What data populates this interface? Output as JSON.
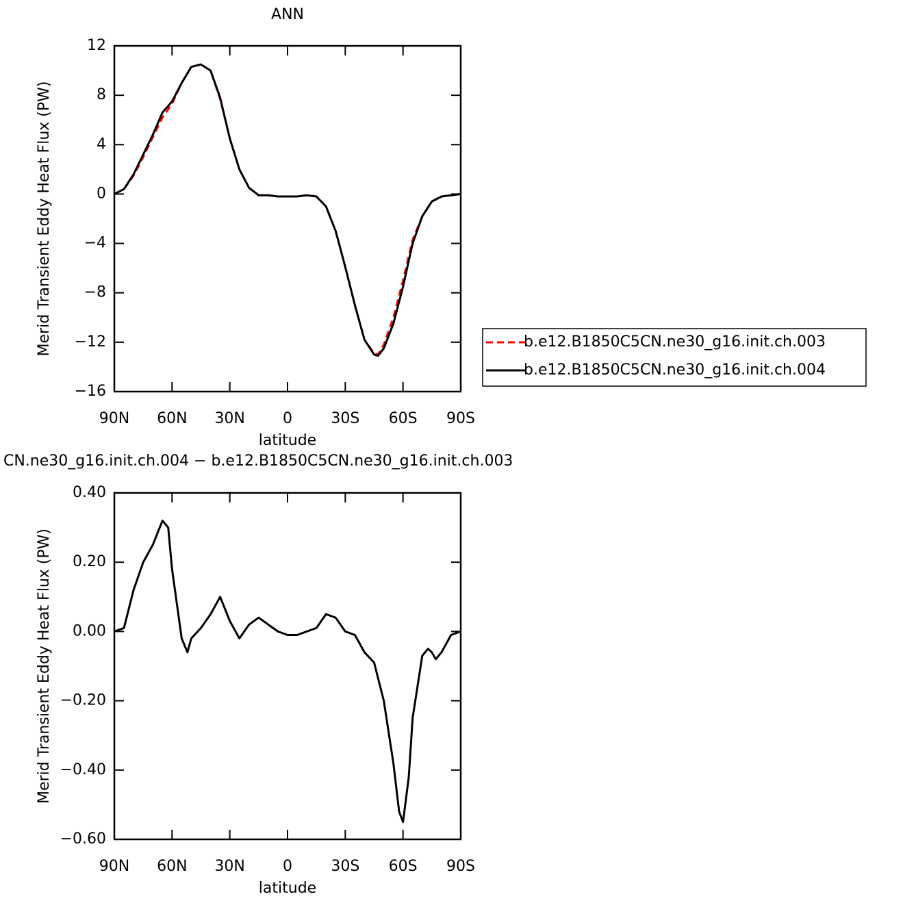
{
  "chart_data": [
    {
      "type": "line",
      "title": "ANN",
      "xlabel": "latitude",
      "ylabel": "Merid Transient Eddy Heat Flux (PW)",
      "x": [
        90,
        85,
        80,
        75,
        70,
        65,
        60,
        55,
        50,
        45,
        40,
        35,
        30,
        25,
        20,
        15,
        10,
        5,
        0,
        -5,
        -10,
        -15,
        -20,
        -25,
        -30,
        -35,
        -40,
        -45,
        -47,
        -50,
        -55,
        -60,
        -65,
        -70,
        -75,
        -80,
        -85,
        -90
      ],
      "series": [
        {
          "name": "b.e12.B1850C5CN.ne30_g16.init.ch.003",
          "color": "#ff0000",
          "dash": true,
          "values": [
            0,
            0.4,
            1.5,
            3.0,
            4.6,
            6.2,
            7.3,
            9.0,
            10.3,
            10.5,
            10.0,
            7.7,
            4.5,
            2.0,
            0.5,
            -0.1,
            -0.1,
            -0.2,
            -0.2,
            -0.2,
            -0.1,
            -0.2,
            -1.0,
            -3.0,
            -5.9,
            -9.0,
            -11.8,
            -12.9,
            -13.0,
            -12.2,
            -10.0,
            -7.0,
            -3.7,
            -1.8,
            -0.6,
            -0.2,
            -0.1,
            0
          ]
        },
        {
          "name": "b.e12.B1850C5CN.ne30_g16.init.ch.004",
          "color": "#000000",
          "dash": false,
          "values": [
            0,
            0.4,
            1.6,
            3.2,
            4.8,
            6.6,
            7.5,
            9.0,
            10.3,
            10.5,
            10.0,
            7.8,
            4.5,
            2.0,
            0.5,
            -0.1,
            -0.1,
            -0.2,
            -0.2,
            -0.2,
            -0.1,
            -0.2,
            -1.0,
            -3.0,
            -5.9,
            -9.0,
            -11.8,
            -13.0,
            -13.1,
            -12.5,
            -10.5,
            -7.5,
            -4.0,
            -1.8,
            -0.6,
            -0.2,
            -0.1,
            0
          ]
        }
      ],
      "xlim": [
        90,
        -90
      ],
      "xticks": [
        {
          "value": 90,
          "label": "90N"
        },
        {
          "value": 60,
          "label": "60N"
        },
        {
          "value": 30,
          "label": "30N"
        },
        0,
        {
          "value": -30,
          "label": "30S"
        },
        {
          "value": -60,
          "label": "60S"
        },
        {
          "value": -90,
          "label": "90S"
        }
      ],
      "ylim": [
        -16,
        12
      ],
      "yticks": [
        {
          "value": -16,
          "label": "−16"
        },
        {
          "value": -12,
          "label": "−12"
        },
        {
          "value": -8,
          "label": "−8"
        },
        {
          "value": -4,
          "label": "−4"
        },
        0,
        4,
        8,
        12
      ],
      "legend": "outside-right"
    },
    {
      "type": "line",
      "title": "CN.ne30_g16.init.ch.004 − b.e12.B1850C5CN.ne30_g16.init.ch.003",
      "xlabel": "latitude",
      "ylabel": "Merid Transient Eddy Heat Flux (PW)",
      "x": [
        90,
        85,
        80,
        75,
        70,
        65,
        62,
        60,
        55,
        52,
        50,
        45,
        40,
        35,
        30,
        25,
        20,
        15,
        10,
        5,
        0,
        -5,
        -10,
        -15,
        -20,
        -25,
        -30,
        -35,
        -40,
        -45,
        -50,
        -55,
        -58,
        -60,
        -63,
        -65,
        -70,
        -73,
        -75,
        -77,
        -80,
        -85,
        -90
      ],
      "series": [
        {
          "color": "#000000",
          "dash": false,
          "values": [
            0.0,
            0.01,
            0.12,
            0.2,
            0.25,
            0.32,
            0.3,
            0.18,
            -0.02,
            -0.06,
            -0.02,
            0.01,
            0.05,
            0.1,
            0.03,
            -0.02,
            0.02,
            0.04,
            0.02,
            0.0,
            -0.01,
            -0.01,
            0.0,
            0.01,
            0.05,
            0.04,
            0.0,
            -0.01,
            -0.06,
            -0.09,
            -0.2,
            -0.38,
            -0.52,
            -0.55,
            -0.42,
            -0.25,
            -0.07,
            -0.05,
            -0.06,
            -0.08,
            -0.06,
            -0.01,
            0.0
          ]
        }
      ],
      "xlim": [
        90,
        -90
      ],
      "xticks": [
        {
          "value": 90,
          "label": "90N"
        },
        {
          "value": 60,
          "label": "60N"
        },
        {
          "value": 30,
          "label": "30N"
        },
        0,
        {
          "value": -30,
          "label": "30S"
        },
        {
          "value": -60,
          "label": "60S"
        },
        {
          "value": -90,
          "label": "90S"
        }
      ],
      "ylim": [
        -0.6,
        0.4
      ],
      "yticks": [
        {
          "value": -0.6,
          "label": "−0.60"
        },
        {
          "value": -0.4,
          "label": "−0.40"
        },
        {
          "value": -0.2,
          "label": "−0.20"
        },
        {
          "value": 0,
          "label": "0.00"
        },
        {
          "value": 0.2,
          "label": "0.20"
        },
        {
          "value": 0.4,
          "label": "0.40"
        }
      ]
    }
  ]
}
